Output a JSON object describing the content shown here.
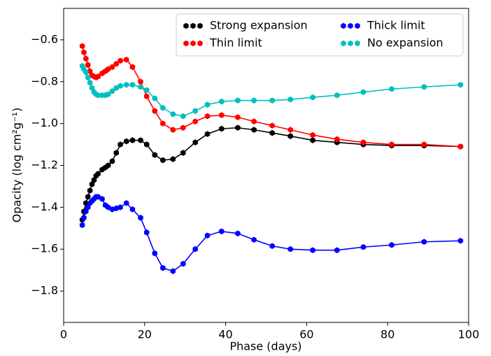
{
  "chart_data": {
    "type": "line",
    "xlabel": "Phase (days)",
    "ylabel": "Opacity (log cm²g⁻¹)",
    "x": [
      4.6,
      5.0,
      5.5,
      6.0,
      6.5,
      7.0,
      7.5,
      8.0,
      8.5,
      9.5,
      10.3,
      11.0,
      12.0,
      13.0,
      14.0,
      15.5,
      17.0,
      19.0,
      20.5,
      22.5,
      24.5,
      27.0,
      29.5,
      32.5,
      35.5,
      39.0,
      43.0,
      47.0,
      51.5,
      56.0,
      61.5,
      67.5,
      74.0,
      81.0,
      89.0,
      98.0
    ],
    "series": [
      {
        "name": "Strong expansion",
        "color": "#000000",
        "values": [
          -1.46,
          -1.42,
          -1.38,
          -1.35,
          -1.32,
          -1.29,
          -1.27,
          -1.25,
          -1.24,
          -1.22,
          -1.21,
          -1.2,
          -1.18,
          -1.14,
          -1.1,
          -1.085,
          -1.08,
          -1.08,
          -1.1,
          -1.15,
          -1.175,
          -1.17,
          -1.14,
          -1.09,
          -1.05,
          -1.025,
          -1.02,
          -1.03,
          -1.045,
          -1.06,
          -1.08,
          -1.09,
          -1.1,
          -1.105,
          -1.105,
          -1.11
        ]
      },
      {
        "name": "Thin limit",
        "color": "#ff0000",
        "values": [
          -0.63,
          -0.66,
          -0.69,
          -0.72,
          -0.75,
          -0.77,
          -0.775,
          -0.78,
          -0.775,
          -0.76,
          -0.75,
          -0.74,
          -0.73,
          -0.715,
          -0.7,
          -0.695,
          -0.73,
          -0.8,
          -0.87,
          -0.94,
          -1.0,
          -1.03,
          -1.02,
          -0.99,
          -0.965,
          -0.96,
          -0.97,
          -0.99,
          -1.01,
          -1.03,
          -1.055,
          -1.075,
          -1.09,
          -1.1,
          -1.1,
          -1.11
        ]
      },
      {
        "name": "Thick limit",
        "color": "#0000ff",
        "values": [
          -1.485,
          -1.45,
          -1.42,
          -1.4,
          -1.38,
          -1.37,
          -1.36,
          -1.35,
          -1.35,
          -1.36,
          -1.39,
          -1.4,
          -1.41,
          -1.405,
          -1.4,
          -1.38,
          -1.41,
          -1.45,
          -1.52,
          -1.62,
          -1.69,
          -1.705,
          -1.67,
          -1.6,
          -1.535,
          -1.515,
          -1.525,
          -1.555,
          -1.585,
          -1.6,
          -1.605,
          -1.605,
          -1.59,
          -1.58,
          -1.565,
          -1.56
        ]
      },
      {
        "name": "No expansion",
        "color": "#00bfbf",
        "values": [
          -0.725,
          -0.74,
          -0.755,
          -0.78,
          -0.805,
          -0.83,
          -0.85,
          -0.86,
          -0.865,
          -0.865,
          -0.865,
          -0.86,
          -0.845,
          -0.83,
          -0.82,
          -0.815,
          -0.815,
          -0.825,
          -0.84,
          -0.88,
          -0.925,
          -0.955,
          -0.965,
          -0.94,
          -0.91,
          -0.895,
          -0.89,
          -0.89,
          -0.89,
          -0.885,
          -0.875,
          -0.865,
          -0.85,
          -0.835,
          -0.825,
          -0.815
        ]
      }
    ],
    "xlim": [
      0,
      100
    ],
    "xticks": [
      0,
      20,
      40,
      60,
      80,
      100
    ],
    "ylim": [
      -1.95,
      -0.45
    ],
    "yticks": [
      {
        "value": -1.8,
        "label": "−1.8"
      },
      {
        "value": -1.6,
        "label": "−1.6"
      },
      {
        "value": -1.4,
        "label": "−1.4"
      },
      {
        "value": -1.2,
        "label": "−1.2"
      },
      {
        "value": -1.0,
        "label": "−1.0"
      },
      {
        "value": -0.8,
        "label": "−0.8"
      },
      {
        "value": -0.6,
        "label": "−0.6"
      }
    ],
    "legend": "upper right",
    "legend_columns": 2
  }
}
